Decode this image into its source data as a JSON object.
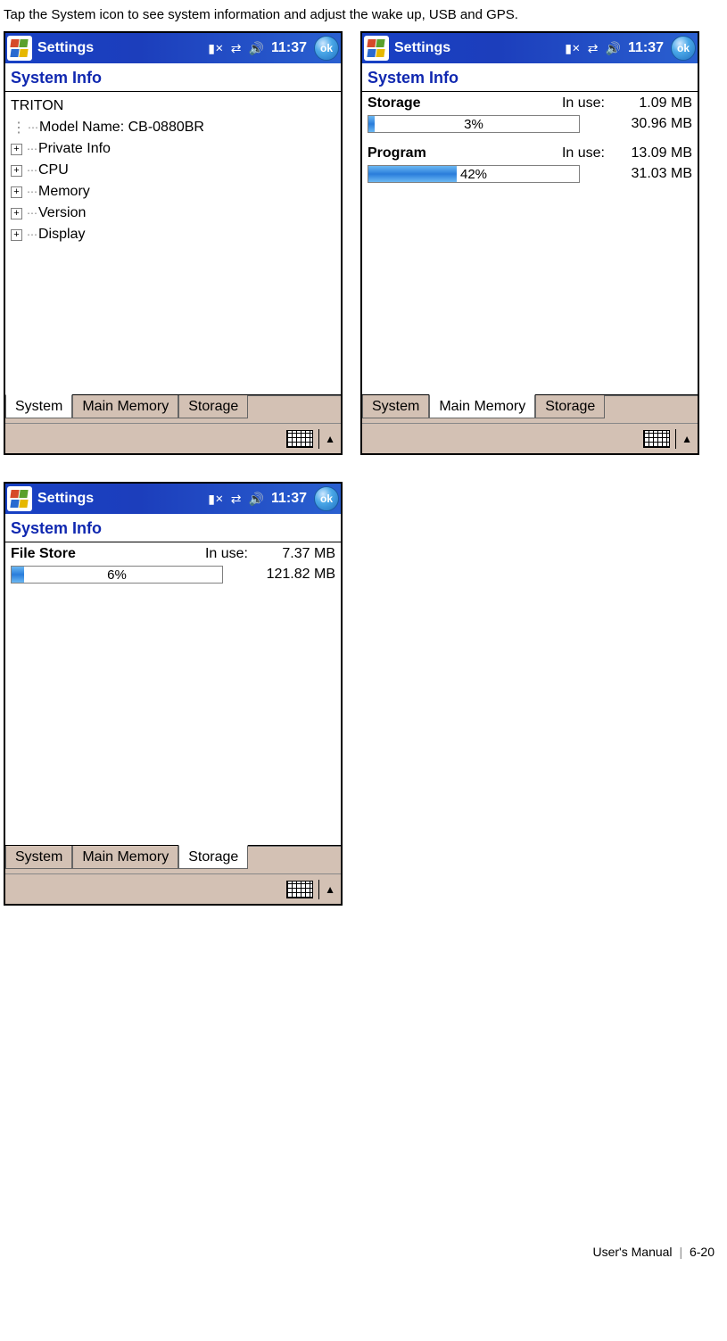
{
  "intro": "Tap the System icon to see system information and adjust the wake up, USB and GPS.",
  "titlebar": {
    "app_title": "Settings",
    "time": "11:37",
    "ok_label": "ok"
  },
  "screen_title": "System Info",
  "tabs": {
    "system": "System",
    "main_memory": "Main Memory",
    "storage": "Storage"
  },
  "screen1": {
    "tree_root": "TRITON",
    "model_name_label": "Model Name: CB-0880BR",
    "items": {
      "private_info": "Private Info",
      "cpu": "CPU",
      "memory": "Memory",
      "version": "Version",
      "display": "Display"
    }
  },
  "screen2": {
    "storage": {
      "name": "Storage",
      "in_use_label": "In use:",
      "in_use_value": "1.09 MB",
      "total_value": "30.96 MB",
      "percent_text": "3%",
      "percent": 3
    },
    "program": {
      "name": "Program",
      "in_use_label": "In use:",
      "in_use_value": "13.09 MB",
      "total_value": "31.03 MB",
      "percent_text": "42%",
      "percent": 42
    }
  },
  "screen3": {
    "file_store": {
      "name": "File Store",
      "in_use_label": "In use:",
      "in_use_value": "7.37 MB",
      "total_value": "121.82 MB",
      "percent_text": "6%",
      "percent": 6
    }
  },
  "footer": {
    "text": "User's Manual",
    "page": "6-20"
  },
  "colors": {
    "titlebar_blue": "#1c3ebc",
    "heading_blue": "#1028b0",
    "tab_bg": "#d3c1b4",
    "bar_blue": "#2a7ddb"
  }
}
